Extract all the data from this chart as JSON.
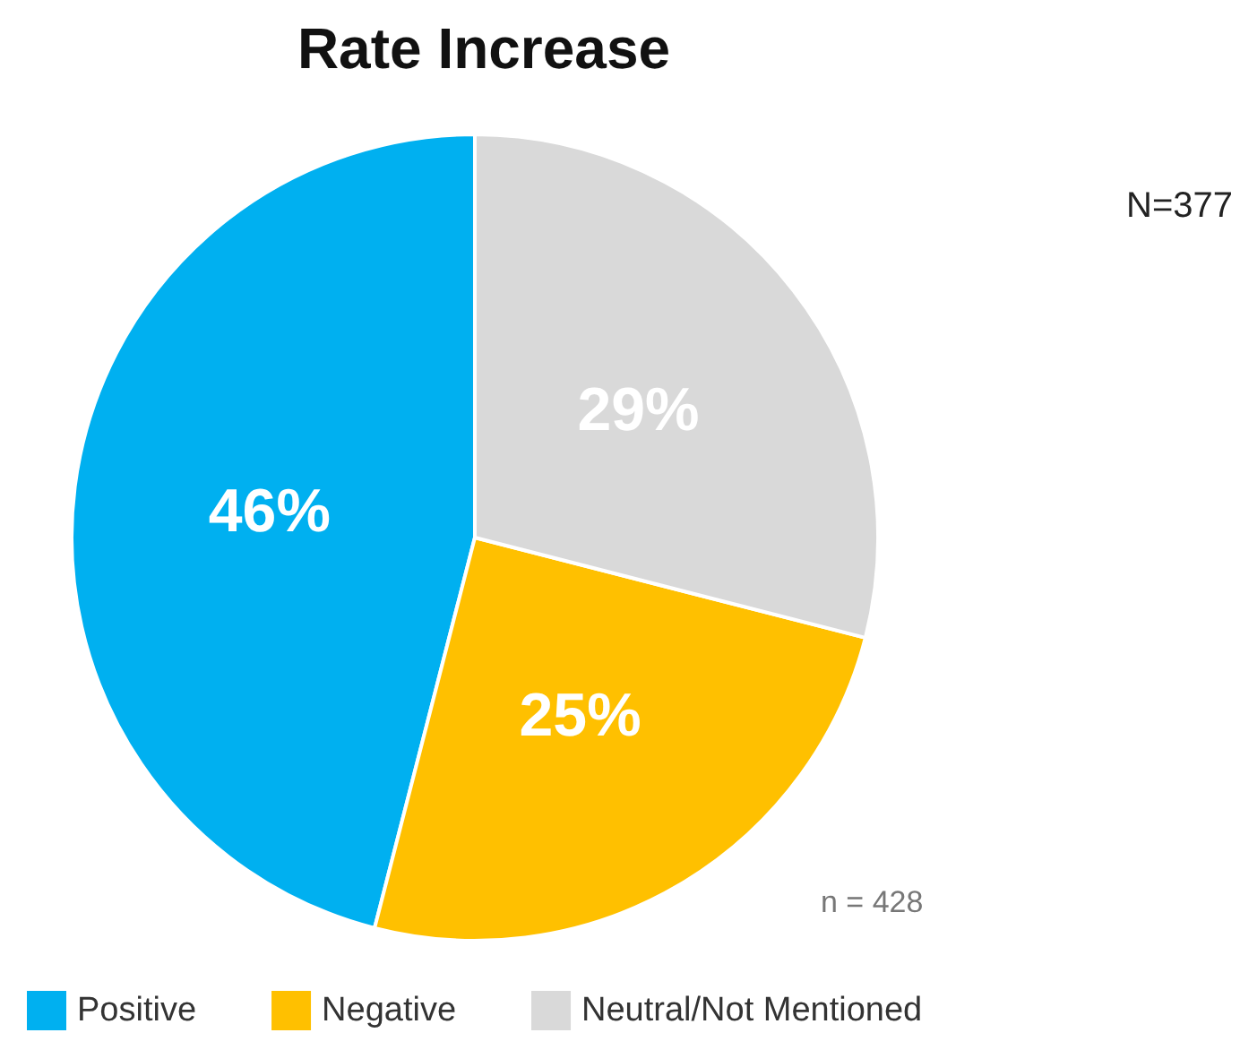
{
  "chart_data": {
    "type": "pie",
    "title": "Rate Increase",
    "categories": [
      "Positive",
      "Negative",
      "Neutral/Not Mentioned"
    ],
    "values": [
      46,
      25,
      29
    ],
    "value_labels": [
      "46%",
      "25%",
      "29%"
    ],
    "colors": [
      "#00b0f0",
      "#ffc000",
      "#d9d9d9"
    ],
    "legend": "bottom left",
    "annotations": [
      "N=377",
      "n = 428"
    ]
  }
}
